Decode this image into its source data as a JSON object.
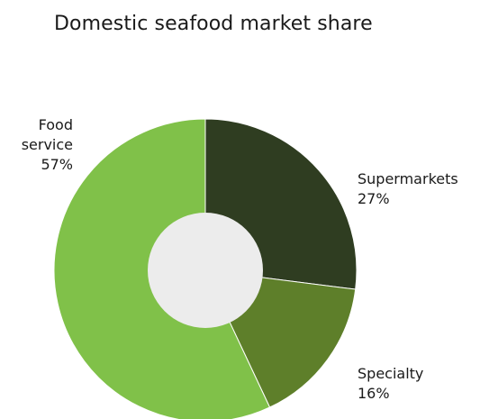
{
  "chart_data": {
    "type": "pie",
    "variant": "donut",
    "title": "Domestic seafood market share",
    "start_angle_deg": 0,
    "direction": "clockwise",
    "slices": [
      {
        "name": "Supermarkets",
        "value": 27,
        "value_label": "27%",
        "color": "#2f3d21"
      },
      {
        "name": "Specialty",
        "value": 16,
        "value_label": "16%",
        "color": "#5e7f2a"
      },
      {
        "name": "Food service",
        "value": 57,
        "value_label": "57%",
        "color": "#80c149",
        "name_lines": [
          "Food",
          "service"
        ]
      }
    ],
    "hole_color": "#ececec"
  }
}
